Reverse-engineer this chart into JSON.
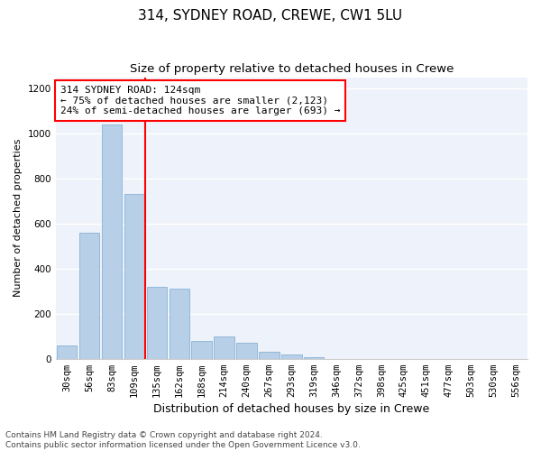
{
  "title": "314, SYDNEY ROAD, CREWE, CW1 5LU",
  "subtitle": "Size of property relative to detached houses in Crewe",
  "xlabel": "Distribution of detached houses by size in Crewe",
  "ylabel": "Number of detached properties",
  "categories": [
    "30sqm",
    "56sqm",
    "83sqm",
    "109sqm",
    "135sqm",
    "162sqm",
    "188sqm",
    "214sqm",
    "240sqm",
    "267sqm",
    "293sqm",
    "319sqm",
    "346sqm",
    "372sqm",
    "398sqm",
    "425sqm",
    "451sqm",
    "477sqm",
    "503sqm",
    "530sqm",
    "556sqm"
  ],
  "values": [
    57,
    560,
    1040,
    730,
    320,
    310,
    80,
    100,
    70,
    30,
    20,
    5,
    0,
    0,
    0,
    0,
    0,
    0,
    0,
    0,
    0
  ],
  "bar_color": "#b8cfe8",
  "bar_edge_color": "#7aaad0",
  "vline_color": "red",
  "vline_position": 3.5,
  "annotation_text": "314 SYDNEY ROAD: 124sqm\n← 75% of detached houses are smaller (2,123)\n24% of semi-detached houses are larger (693) →",
  "annotation_box_color": "white",
  "annotation_box_edge_color": "red",
  "ylim": [
    0,
    1250
  ],
  "yticks": [
    0,
    200,
    400,
    600,
    800,
    1000,
    1200
  ],
  "background_color": "#eef2fa",
  "grid_color": "white",
  "footer": "Contains HM Land Registry data © Crown copyright and database right 2024.\nContains public sector information licensed under the Open Government Licence v3.0.",
  "title_fontsize": 11,
  "subtitle_fontsize": 9.5,
  "xlabel_fontsize": 9,
  "ylabel_fontsize": 8,
  "tick_fontsize": 7.5,
  "annotation_fontsize": 8,
  "footer_fontsize": 6.5
}
